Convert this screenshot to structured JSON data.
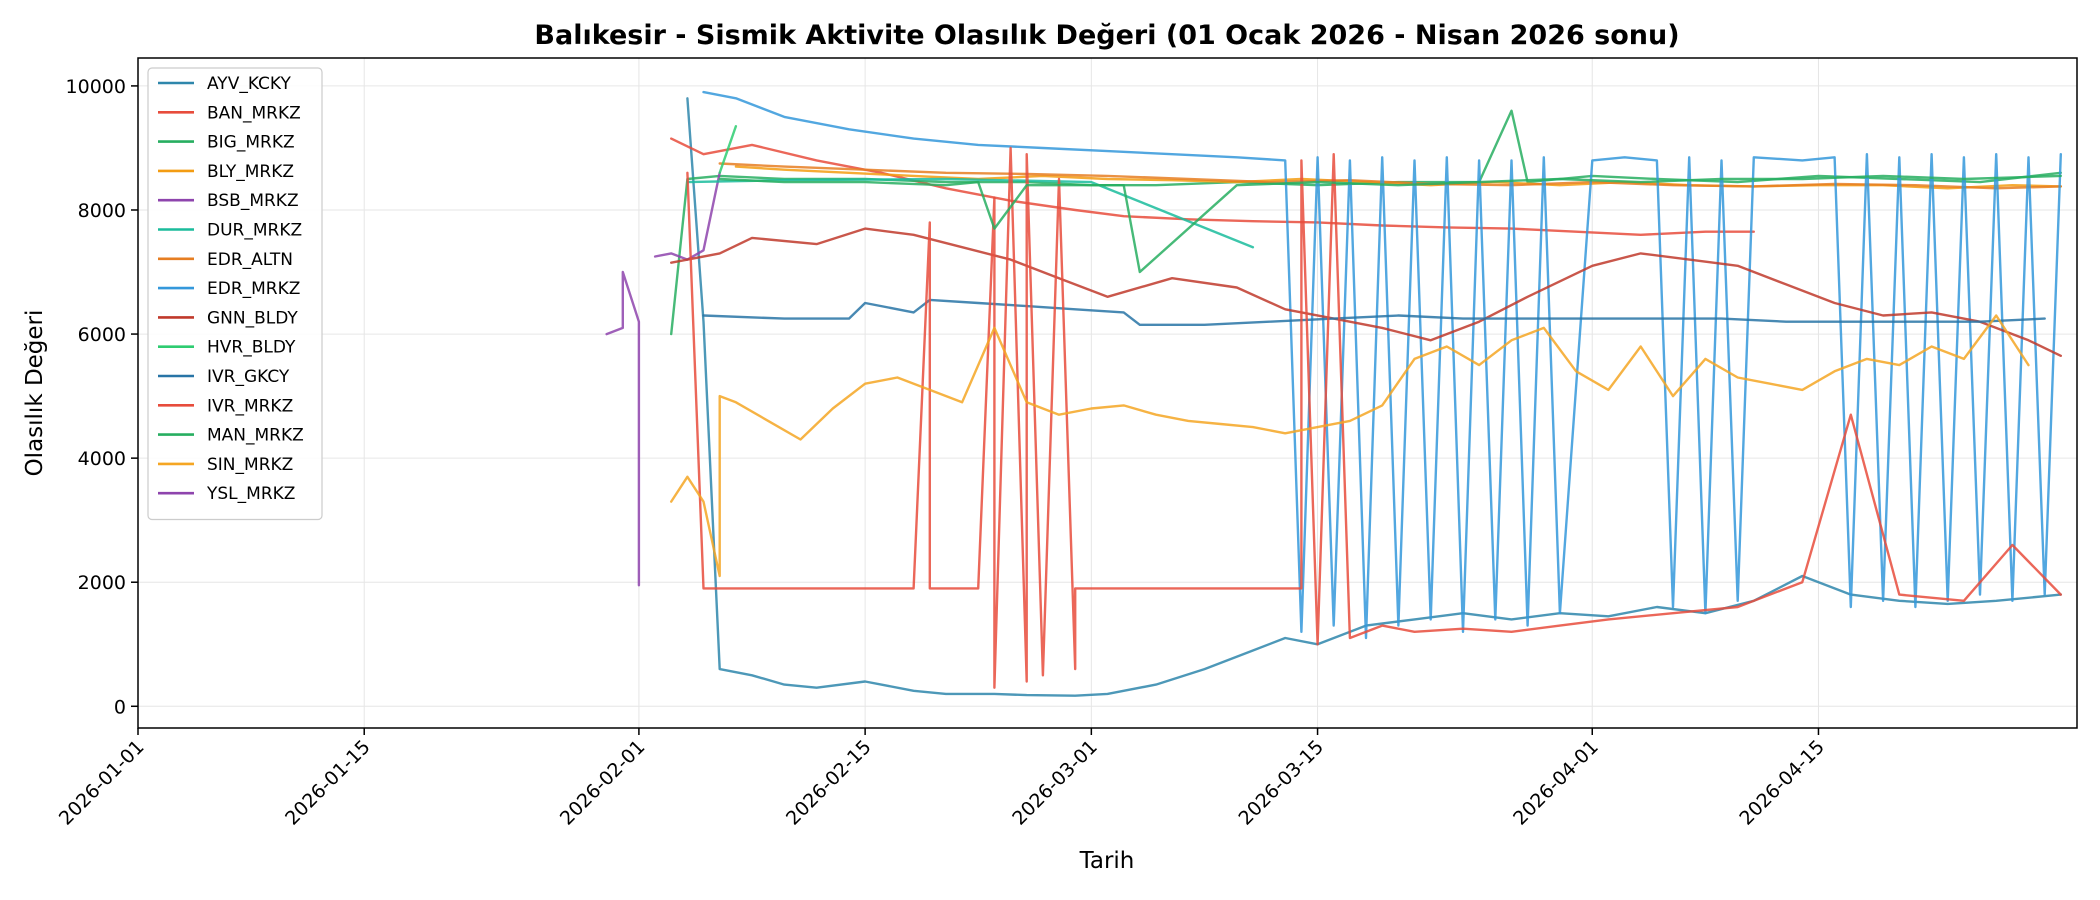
{
  "chart_data": {
    "type": "line",
    "title": "Balıkesir - Sismik Aktivite Olasılık Değeri (01 Ocak 2026 - Nisan 2026 sonu)",
    "xlabel": "Tarih",
    "ylabel": "Olasılık Değeri",
    "x_type": "date",
    "xlim": [
      "2026-01-01",
      "2026-05-01"
    ],
    "ylim": [
      -350,
      10450
    ],
    "x_ticks": [
      "2026-01-01",
      "2026-01-15",
      "2026-02-01",
      "2026-02-15",
      "2026-03-01",
      "2026-03-15",
      "2026-04-01",
      "2026-04-15"
    ],
    "y_ticks": [
      0,
      2000,
      4000,
      6000,
      8000,
      10000
    ],
    "grid": true,
    "legend_position": "top-left",
    "series": [
      {
        "name": "AYV_KCKY",
        "color": "#2e86ab",
        "x": [
          "2026-02-04",
          "2026-02-05",
          "2026-02-06",
          "2026-02-08",
          "2026-02-10",
          "2026-02-12",
          "2026-02-15",
          "2026-02-18",
          "2026-02-20",
          "2026-02-23",
          "2026-02-25",
          "2026-02-28",
          "2026-03-02",
          "2026-03-05",
          "2026-03-08",
          "2026-03-11",
          "2026-03-13",
          "2026-03-15",
          "2026-03-18",
          "2026-03-21",
          "2026-03-24",
          "2026-03-27",
          "2026-03-30",
          "2026-04-02",
          "2026-04-05",
          "2026-04-08",
          "2026-04-11",
          "2026-04-14",
          "2026-04-17",
          "2026-04-20",
          "2026-04-23",
          "2026-04-26",
          "2026-04-30"
        ],
        "y": [
          9800,
          6200,
          600,
          500,
          350,
          300,
          400,
          250,
          200,
          200,
          180,
          170,
          200,
          350,
          600,
          900,
          1100,
          1000,
          1300,
          1400,
          1500,
          1400,
          1500,
          1450,
          1600,
          1500,
          1700,
          2100,
          1800,
          1700,
          1650,
          1700,
          1800
        ]
      },
      {
        "name": "BAN_MRKZ",
        "color": "#e74c3c",
        "x": [
          "2026-02-03",
          "2026-02-05",
          "2026-02-08",
          "2026-02-12",
          "2026-02-16",
          "2026-02-20",
          "2026-02-24",
          "2026-02-28",
          "2026-03-03",
          "2026-03-07",
          "2026-03-11",
          "2026-03-15",
          "2026-03-19",
          "2026-03-23",
          "2026-03-27",
          "2026-03-31",
          "2026-04-04",
          "2026-04-08",
          "2026-04-11"
        ],
        "y": [
          9150,
          8900,
          9050,
          8800,
          8600,
          8350,
          8150,
          8000,
          7900,
          7850,
          7820,
          7800,
          7750,
          7720,
          7700,
          7650,
          7600,
          7650,
          7650
        ]
      },
      {
        "name": "BIG_MRKZ",
        "color": "#27ae60",
        "x": [
          "2026-02-03",
          "2026-02-04",
          "2026-02-06",
          "2026-02-10",
          "2026-02-15",
          "2026-02-20",
          "2026-02-25",
          "2026-03-01",
          "2026-03-05",
          "2026-03-10",
          "2026-03-15",
          "2026-03-20",
          "2026-03-25",
          "2026-03-27",
          "2026-03-28",
          "2026-04-01",
          "2026-04-05",
          "2026-04-10",
          "2026-04-15",
          "2026-04-20",
          "2026-04-25",
          "2026-04-30"
        ],
        "y": [
          6000,
          8500,
          8550,
          8500,
          8500,
          8450,
          8450,
          8400,
          8400,
          8450,
          8400,
          8450,
          8450,
          9600,
          8450,
          8550,
          8500,
          8450,
          8550,
          8500,
          8450,
          8600
        ]
      },
      {
        "name": "BLY_MRKZ",
        "color": "#f39c12",
        "x": [
          "2026-02-07",
          "2026-02-10",
          "2026-02-14",
          "2026-02-18",
          "2026-02-22",
          "2026-02-26",
          "2026-03-02",
          "2026-03-06",
          "2026-03-10",
          "2026-03-14",
          "2026-03-18",
          "2026-03-22",
          "2026-03-26",
          "2026-03-30",
          "2026-04-03",
          "2026-04-07",
          "2026-04-11",
          "2026-04-15",
          "2026-04-19",
          "2026-04-23",
          "2026-04-27",
          "2026-04-30"
        ],
        "y": [
          8700,
          8650,
          8600,
          8550,
          8500,
          8550,
          8500,
          8480,
          8450,
          8500,
          8450,
          8400,
          8450,
          8400,
          8450,
          8400,
          8380,
          8400,
          8400,
          8350,
          8400,
          8380
        ]
      },
      {
        "name": "BSB_MRKZ",
        "color": "#8e44ad",
        "x": [
          "2026-02-02",
          "2026-02-03",
          "2026-02-04",
          "2026-02-05",
          "2026-02-06"
        ],
        "y": [
          7250,
          7300,
          7200,
          7350,
          8600
        ]
      },
      {
        "name": "DUR_MRKZ",
        "color": "#1abc9c",
        "x": [
          "2026-02-04",
          "2026-02-10",
          "2026-02-20",
          "2026-03-01",
          "2026-03-11"
        ],
        "y": [
          8450,
          8480,
          8500,
          8450,
          7400
        ]
      },
      {
        "name": "EDR_ALTN",
        "color": "#e67e22",
        "x": [
          "2026-02-06",
          "2026-02-10",
          "2026-02-15",
          "2026-02-20",
          "2026-02-25",
          "2026-03-02",
          "2026-03-07",
          "2026-03-12",
          "2026-03-17",
          "2026-03-22",
          "2026-03-27",
          "2026-04-01",
          "2026-04-06",
          "2026-04-11",
          "2026-04-16",
          "2026-04-21",
          "2026-04-26",
          "2026-04-30"
        ],
        "y": [
          8750,
          8700,
          8650,
          8600,
          8580,
          8550,
          8500,
          8450,
          8480,
          8420,
          8400,
          8450,
          8400,
          8380,
          8420,
          8400,
          8350,
          8380
        ]
      },
      {
        "name": "EDR_MRKZ",
        "color": "#3498db",
        "x": [
          "2026-02-05",
          "2026-02-07",
          "2026-02-10",
          "2026-02-14",
          "2026-02-18",
          "2026-02-22",
          "2026-02-26",
          "2026-03-02",
          "2026-03-06",
          "2026-03-10",
          "2026-03-13",
          "2026-03-14",
          "2026-03-15",
          "2026-03-16",
          "2026-03-17",
          "2026-03-18",
          "2026-03-19",
          "2026-03-20",
          "2026-03-21",
          "2026-03-22",
          "2026-03-23",
          "2026-03-24",
          "2026-03-25",
          "2026-03-26",
          "2026-03-27",
          "2026-03-28",
          "2026-03-29",
          "2026-03-30",
          "2026-04-01",
          "2026-04-03",
          "2026-04-05",
          "2026-04-06",
          "2026-04-07",
          "2026-04-08",
          "2026-04-09",
          "2026-04-10",
          "2026-04-11",
          "2026-04-14",
          "2026-04-16",
          "2026-04-17",
          "2026-04-18",
          "2026-04-19",
          "2026-04-20",
          "2026-04-21",
          "2026-04-22",
          "2026-04-23",
          "2026-04-24",
          "2026-04-25",
          "2026-04-26",
          "2026-04-27",
          "2026-04-28",
          "2026-04-29",
          "2026-04-30"
        ],
        "y": [
          9900,
          9800,
          9500,
          9300,
          9150,
          9050,
          9000,
          8950,
          8900,
          8850,
          8800,
          1200,
          8850,
          1300,
          8800,
          1100,
          8850,
          1300,
          8800,
          1400,
          8850,
          1200,
          8800,
          1400,
          8800,
          1300,
          8850,
          1500,
          8800,
          8850,
          8800,
          1600,
          8850,
          1500,
          8800,
          1700,
          8850,
          8800,
          8850,
          1600,
          8900,
          1700,
          8850,
          1600,
          8900,
          1700,
          8850,
          1800,
          8900,
          1700,
          8850,
          1800,
          8900
        ]
      },
      {
        "name": "GNN_BLDY",
        "color": "#c0392b",
        "x": [
          "2026-02-03",
          "2026-02-06",
          "2026-02-08",
          "2026-02-12",
          "2026-02-15",
          "2026-02-18",
          "2026-02-21",
          "2026-02-24",
          "2026-02-27",
          "2026-03-02",
          "2026-03-06",
          "2026-03-10",
          "2026-03-13",
          "2026-03-16",
          "2026-03-19",
          "2026-03-22",
          "2026-03-25",
          "2026-03-28",
          "2026-04-01",
          "2026-04-04",
          "2026-04-07",
          "2026-04-10",
          "2026-04-13",
          "2026-04-16",
          "2026-04-19",
          "2026-04-22",
          "2026-04-25",
          "2026-04-28",
          "2026-04-30"
        ],
        "y": [
          7150,
          7300,
          7550,
          7450,
          7700,
          7600,
          7400,
          7200,
          6900,
          6600,
          6900,
          6750,
          6400,
          6250,
          6100,
          5900,
          6200,
          6600,
          7100,
          7300,
          7200,
          7100,
          6800,
          6500,
          6300,
          6350,
          6200,
          5900,
          5650
        ]
      },
      {
        "name": "HVR_BLDY",
        "color": "#2ecc71",
        "x": [
          "2026-02-06",
          "2026-02-07"
        ],
        "y": [
          8600,
          9350
        ]
      },
      {
        "name": "IVR_GKCY",
        "color": "#2874a6",
        "x": [
          "2026-02-05",
          "2026-02-10",
          "2026-02-14",
          "2026-02-15",
          "2026-02-18",
          "2026-02-19",
          "2026-02-22",
          "2026-02-25",
          "2026-02-28",
          "2026-03-03",
          "2026-03-04",
          "2026-03-08",
          "2026-03-12",
          "2026-03-16",
          "2026-03-20",
          "2026-03-24",
          "2026-03-28",
          "2026-04-01",
          "2026-04-05",
          "2026-04-09",
          "2026-04-13",
          "2026-04-17",
          "2026-04-21",
          "2026-04-25",
          "2026-04-29"
        ],
        "y": [
          6300,
          6250,
          6250,
          6500,
          6350,
          6550,
          6500,
          6450,
          6400,
          6350,
          6150,
          6150,
          6200,
          6250,
          6300,
          6250,
          6250,
          6250,
          6250,
          6250,
          6200,
          6200,
          6200,
          6200,
          6250
        ]
      },
      {
        "name": "IVR_MRKZ",
        "color": "#e74c3c",
        "x": [
          "2026-02-04",
          "2026-02-05",
          "2026-02-10",
          "2026-02-18",
          "2026-02-19",
          "2026-02-19",
          "2026-02-20",
          "2026-02-22",
          "2026-02-23",
          "2026-02-23",
          "2026-02-24",
          "2026-02-25",
          "2026-02-25",
          "2026-02-26",
          "2026-02-27",
          "2026-02-28",
          "2026-02-28",
          "2026-03-01",
          "2026-03-14",
          "2026-03-14",
          "2026-03-15",
          "2026-03-16",
          "2026-03-17",
          "2026-03-19",
          "2026-03-21",
          "2026-03-24",
          "2026-03-27",
          "2026-03-30",
          "2026-04-02",
          "2026-04-06",
          "2026-04-10",
          "2026-04-14",
          "2026-04-17",
          "2026-04-20",
          "2026-04-24",
          "2026-04-27",
          "2026-04-30"
        ],
        "y": [
          8600,
          1900,
          1900,
          1900,
          7800,
          1900,
          1900,
          1900,
          8200,
          300,
          9000,
          400,
          8900,
          500,
          8500,
          600,
          1900,
          1900,
          1900,
          8800,
          1000,
          8900,
          1100,
          1300,
          1200,
          1250,
          1200,
          1300,
          1400,
          1500,
          1600,
          2000,
          4700,
          1800,
          1700,
          2600,
          1800
        ]
      },
      {
        "name": "MAN_MRKZ",
        "color": "#27ae60",
        "x": [
          "2026-02-06",
          "2026-02-10",
          "2026-02-15",
          "2026-02-20",
          "2026-02-22",
          "2026-02-23",
          "2026-02-25",
          "2026-03-01",
          "2026-03-03",
          "2026-03-04",
          "2026-03-10",
          "2026-03-15",
          "2026-03-20",
          "2026-03-25",
          "2026-03-30",
          "2026-04-04",
          "2026-04-09",
          "2026-04-14",
          "2026-04-19",
          "2026-04-24",
          "2026-04-30"
        ],
        "y": [
          8500,
          8450,
          8450,
          8400,
          8450,
          7700,
          8400,
          8400,
          8400,
          7000,
          8400,
          8450,
          8400,
          8450,
          8500,
          8450,
          8500,
          8500,
          8550,
          8500,
          8550
        ]
      },
      {
        "name": "SIN_MRKZ",
        "color": "#f5a623",
        "x": [
          "2026-02-03",
          "2026-02-04",
          "2026-02-05",
          "2026-02-06",
          "2026-02-06",
          "2026-02-07",
          "2026-02-09",
          "2026-02-11",
          "2026-02-13",
          "2026-02-15",
          "2026-02-17",
          "2026-02-19",
          "2026-02-21",
          "2026-02-23",
          "2026-02-25",
          "2026-02-27",
          "2026-03-01",
          "2026-03-03",
          "2026-03-05",
          "2026-03-07",
          "2026-03-09",
          "2026-03-11",
          "2026-03-13",
          "2026-03-15",
          "2026-03-17",
          "2026-03-19",
          "2026-03-21",
          "2026-03-23",
          "2026-03-25",
          "2026-03-27",
          "2026-03-29",
          "2026-03-31",
          "2026-04-02",
          "2026-04-04",
          "2026-04-06",
          "2026-04-08",
          "2026-04-10",
          "2026-04-12",
          "2026-04-14",
          "2026-04-16",
          "2026-04-18",
          "2026-04-20",
          "2026-04-22",
          "2026-04-24",
          "2026-04-26",
          "2026-04-28"
        ],
        "y": [
          3300,
          3700,
          3300,
          2100,
          5000,
          4900,
          4600,
          4300,
          4800,
          5200,
          5300,
          5100,
          4900,
          6100,
          4900,
          4700,
          4800,
          4850,
          4700,
          4600,
          4550,
          4500,
          4400,
          4500,
          4600,
          4850,
          5600,
          5800,
          5500,
          5900,
          6100,
          5400,
          5100,
          5800,
          5000,
          5600,
          5300,
          5200,
          5100,
          5400,
          5600,
          5500,
          5800,
          5600,
          6300,
          5500
        ]
      },
      {
        "name": "YSL_MRKZ",
        "color": "#8e44ad",
        "x": [
          "2026-01-30",
          "2026-01-31",
          "2026-01-31",
          "2026-02-01",
          "2026-02-01",
          "2026-02-01"
        ],
        "y": [
          6000,
          6100,
          7000,
          6200,
          1950,
          4000
        ]
      }
    ]
  }
}
